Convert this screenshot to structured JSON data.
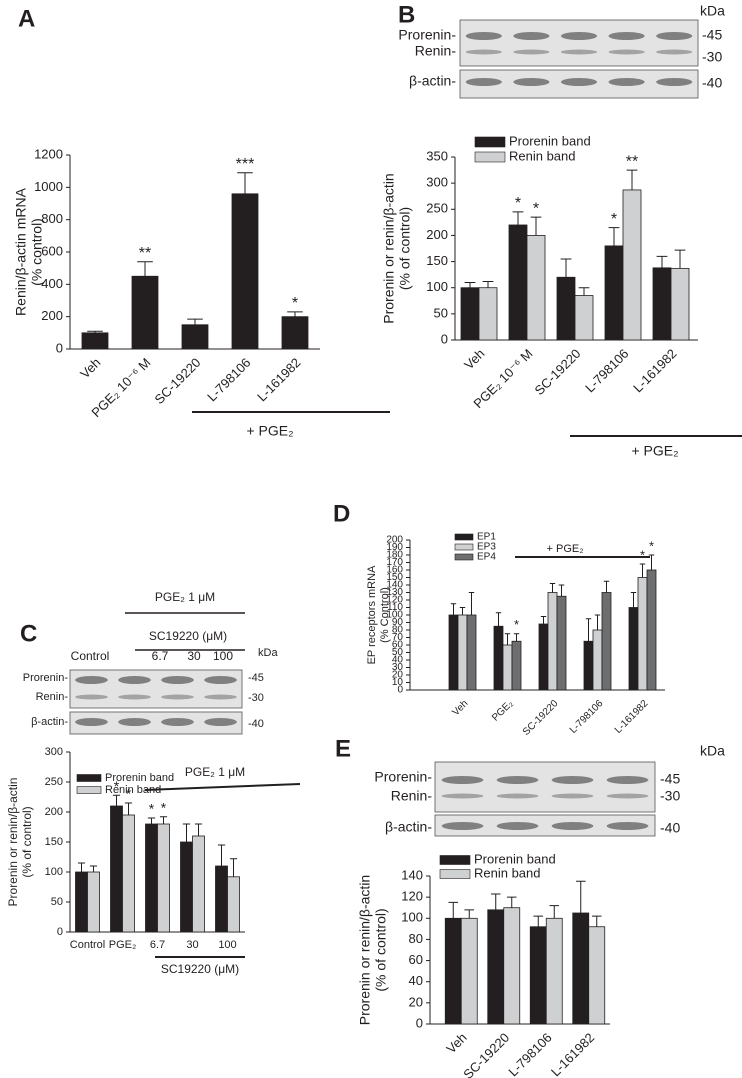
{
  "chart_data": [
    {
      "type": "bar",
      "label": "A",
      "ylabel": [
        "Renin/β-actin mRNA",
        "(% control)"
      ],
      "categories": [
        "Veh",
        "PGE₂ 10⁻⁶ M",
        "SC-19220",
        "L-798106",
        "L-161982"
      ],
      "values": [
        100,
        450,
        150,
        960,
        200
      ],
      "errors": [
        10,
        90,
        35,
        130,
        30
      ],
      "sig": [
        null,
        "**",
        null,
        "***",
        "*"
      ],
      "color": "#231f20",
      "ylim": [
        0,
        1200
      ],
      "yticks": [
        0,
        200,
        400,
        600,
        800,
        1000,
        1200
      ],
      "notes": [
        "+ PGE₂"
      ]
    },
    {
      "type": "bar",
      "label": "B",
      "ylabel": [
        "Prorenin or renin/β-actin",
        "(% of control)"
      ],
      "categories": [
        "Veh",
        "PGE₂ 10⁻⁶ M",
        "SC-19220",
        "L-798106",
        "L-161982"
      ],
      "series": [
        {
          "name": "Prorenin band",
          "color": "#231f20",
          "values": [
            100,
            220,
            120,
            180,
            138
          ],
          "errors": [
            10,
            25,
            35,
            35,
            22
          ],
          "sig": [
            null,
            "*",
            null,
            "*",
            null
          ]
        },
        {
          "name": "Renin band",
          "color": "#cfd0d2",
          "values": [
            100,
            200,
            85,
            287,
            137
          ],
          "errors": [
            12,
            35,
            15,
            38,
            35
          ],
          "sig": [
            null,
            "*",
            null,
            "**",
            null
          ]
        }
      ],
      "ylim": [
        0,
        350
      ],
      "yticks": [
        0,
        50,
        100,
        150,
        200,
        250,
        300,
        350
      ],
      "notes": [
        "+ PGE₂"
      ],
      "blot": {
        "rows": [
          "Prorenin-",
          "Renin-",
          "β-actin-"
        ],
        "kda_title": "kDa",
        "kda": [
          "-45",
          "-30",
          "-40"
        ]
      }
    },
    {
      "type": "bar",
      "label": "C",
      "ylabel": [
        "Prorenin or renin/β-actin",
        "(% of control)"
      ],
      "categories": [
        "Control",
        "PGE₂",
        "6.7",
        "30",
        "100"
      ],
      "series": [
        {
          "name": "Prorenin band",
          "color": "#231f20",
          "values": [
            100,
            210,
            180,
            150,
            110
          ],
          "errors": [
            15,
            18,
            10,
            30,
            35
          ],
          "sig": [
            null,
            "*",
            "*",
            null,
            null
          ]
        },
        {
          "name": "Renin band",
          "color": "#cfd0d2",
          "values": [
            100,
            195,
            180,
            160,
            92
          ],
          "errors": [
            10,
            20,
            12,
            20,
            30
          ],
          "sig": [
            null,
            "*",
            "*",
            null,
            null
          ]
        }
      ],
      "ylim": [
        0,
        300
      ],
      "yticks": [
        0,
        50,
        100,
        150,
        200,
        250,
        300
      ],
      "notes": [
        "PGE₂ 1 μM",
        "SC19220 (μM)"
      ],
      "blot": {
        "rows": [
          "Prorenin-",
          "Renin-",
          "β-actin-"
        ],
        "kda_title": "kDa",
        "kda": [
          "-45",
          "-30",
          "-40"
        ],
        "header": [
          "PGE₂ 1 μM",
          "SC19220 (μM)"
        ],
        "lanes": [
          "Control",
          "6.7",
          "30",
          "100"
        ]
      }
    },
    {
      "type": "bar",
      "label": "D",
      "ylabel": [
        "EP receptors mRNA",
        "(% Control)"
      ],
      "categories": [
        "Veh",
        "PGE₂",
        "SC-19220",
        "L-798106",
        "L-161982"
      ],
      "series": [
        {
          "name": "EP1",
          "color": "#231f20",
          "values": [
            100,
            85,
            88,
            65,
            110
          ],
          "errors": [
            15,
            18,
            10,
            30,
            20
          ],
          "sig": [
            null,
            null,
            null,
            null,
            null
          ]
        },
        {
          "name": "EP3",
          "color": "#cfd0d2",
          "values": [
            100,
            60,
            130,
            80,
            150
          ],
          "errors": [
            10,
            15,
            12,
            20,
            18
          ],
          "sig": [
            null,
            null,
            null,
            null,
            "*"
          ]
        },
        {
          "name": "EP4",
          "color": "#6d6e70",
          "values": [
            100,
            65,
            125,
            130,
            160
          ],
          "errors": [
            30,
            10,
            15,
            15,
            20
          ],
          "sig": [
            null,
            "*",
            null,
            null,
            "*"
          ]
        }
      ],
      "ylim": [
        0,
        200
      ],
      "yticks": [
        0,
        10,
        20,
        30,
        40,
        50,
        60,
        70,
        80,
        90,
        100,
        110,
        120,
        130,
        140,
        150,
        160,
        170,
        180,
        190,
        200
      ],
      "notes": [
        "+ PGE₂"
      ]
    },
    {
      "type": "bar",
      "label": "E",
      "ylabel": [
        "Prorenin or renin/β-actin",
        "(% of control)"
      ],
      "categories": [
        "Veh",
        "SC-19220",
        "L-798106",
        "L-161982"
      ],
      "series": [
        {
          "name": "Prorenin band",
          "color": "#231f20",
          "values": [
            100,
            108,
            92,
            105
          ],
          "errors": [
            15,
            15,
            10,
            30
          ],
          "sig": [
            null,
            null,
            null,
            null
          ]
        },
        {
          "name": "Renin band",
          "color": "#cfd0d2",
          "values": [
            100,
            110,
            100,
            92
          ],
          "errors": [
            8,
            10,
            12,
            10
          ],
          "sig": [
            null,
            null,
            null,
            null
          ]
        }
      ],
      "ylim": [
        0,
        140
      ],
      "yticks": [
        0,
        20,
        40,
        60,
        80,
        100,
        120,
        140
      ],
      "blot": {
        "rows": [
          "Prorenin-",
          "Renin-",
          "β-actin-"
        ],
        "kda_title": "kDa",
        "kda": [
          "-45",
          "-30",
          "-40"
        ]
      }
    }
  ]
}
